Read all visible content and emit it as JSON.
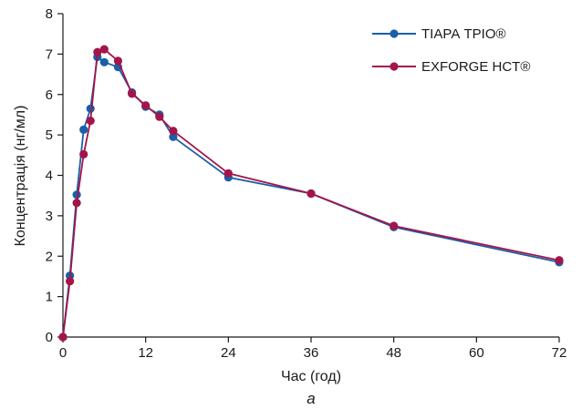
{
  "chart_data": {
    "type": "line",
    "xlabel": "Час (год)",
    "ylabel": "Концентрація (нг/мл)",
    "caption": "а",
    "xlim": [
      0,
      72
    ],
    "ylim": [
      0,
      8
    ],
    "x_ticks": [
      "0",
      "12",
      "24",
      "36",
      "48",
      "60",
      "72"
    ],
    "y_ticks": [
      "0",
      "1",
      "2",
      "3",
      "4",
      "5",
      "6",
      "7",
      "8"
    ],
    "grid": false,
    "legend_position": "top-right",
    "series": [
      {
        "name": "ТІАРА ТРІО®",
        "color": "#1a5fa8",
        "x": [
          0,
          1,
          2,
          3,
          4,
          5,
          6,
          8,
          10,
          12,
          14,
          16,
          24,
          36,
          48,
          72
        ],
        "y": [
          0,
          1.52,
          3.52,
          5.13,
          5.65,
          6.93,
          6.8,
          6.68,
          6.05,
          5.7,
          5.5,
          4.95,
          3.95,
          3.55,
          2.72,
          1.85
        ]
      },
      {
        "name": "EXFORGE HCT®",
        "color": "#a3154a",
        "x": [
          0,
          1,
          2,
          3,
          4,
          5,
          6,
          8,
          10,
          12,
          14,
          16,
          24,
          36,
          48,
          72
        ],
        "y": [
          0,
          1.38,
          3.32,
          4.52,
          5.35,
          7.05,
          7.12,
          6.83,
          6.02,
          5.73,
          5.45,
          5.1,
          4.05,
          3.55,
          2.75,
          1.9
        ]
      }
    ]
  }
}
